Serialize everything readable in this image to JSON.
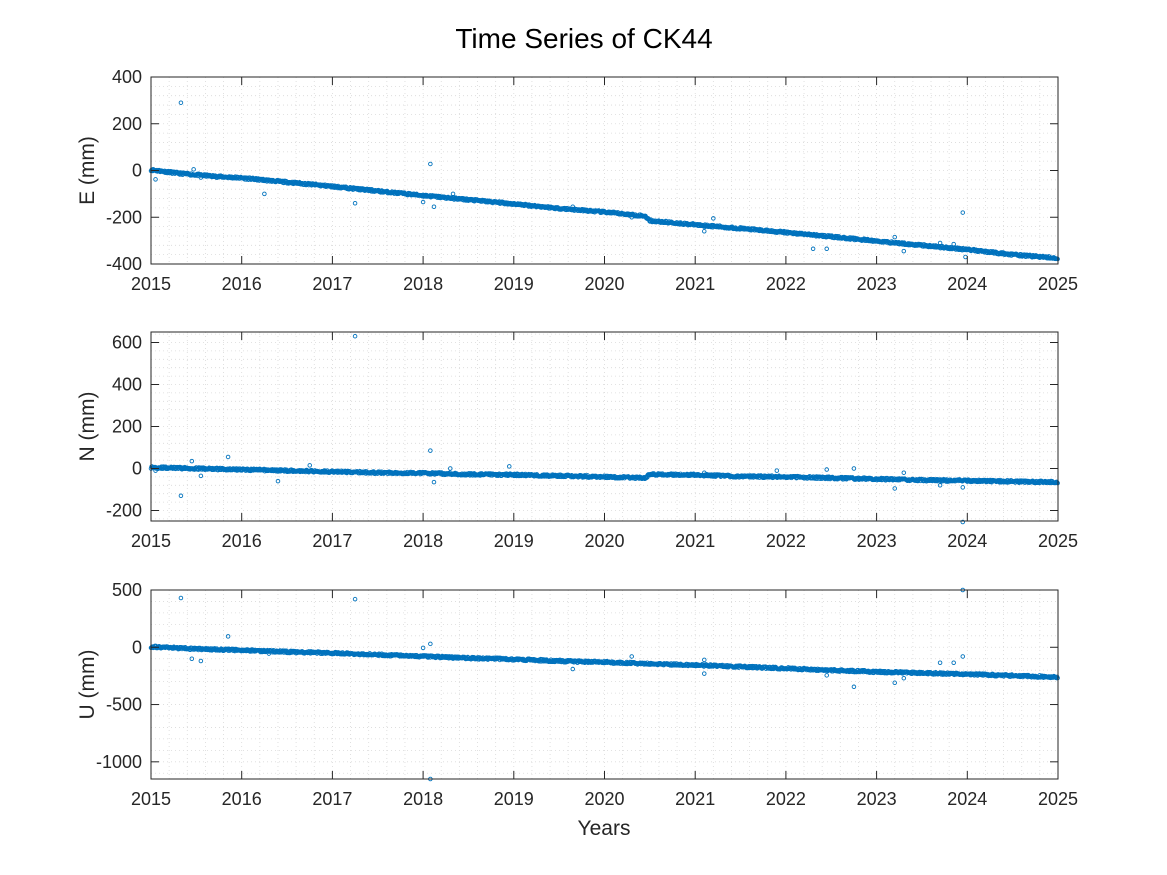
{
  "figure": {
    "title": "Time Series of CK44",
    "xlabel": "Years",
    "marker_color": "#0072bd"
  },
  "chart_data": [
    {
      "type": "scatter",
      "ylabel": "E (mm)",
      "xlim": [
        2015,
        2025
      ],
      "ylim": [
        -400,
        400
      ],
      "xticks": [
        "2015",
        "2016",
        "2017",
        "2018",
        "2019",
        "2020",
        "2021",
        "2022",
        "2023",
        "2024",
        "2025"
      ],
      "yticks": [
        "400",
        "200",
        "0",
        "-200",
        "-400"
      ],
      "grid": "on (minor dotted)",
      "trend": [
        [
          2015.0,
          3
        ],
        [
          2015.3,
          -12
        ],
        [
          2015.7,
          -25
        ],
        [
          2016.0,
          -32
        ],
        [
          2016.5,
          -50
        ],
        [
          2017.0,
          -68
        ],
        [
          2017.5,
          -88
        ],
        [
          2018.0,
          -107
        ],
        [
          2018.5,
          -125
        ],
        [
          2019.0,
          -143
        ],
        [
          2019.5,
          -162
        ],
        [
          2020.0,
          -178
        ],
        [
          2020.45,
          -195
        ],
        [
          2020.5,
          -215
        ],
        [
          2021.0,
          -232
        ],
        [
          2021.5,
          -248
        ],
        [
          2022.0,
          -265
        ],
        [
          2022.5,
          -283
        ],
        [
          2023.0,
          -302
        ],
        [
          2023.5,
          -320
        ],
        [
          2024.0,
          -338
        ],
        [
          2024.5,
          -360
        ],
        [
          2025.0,
          -375
        ]
      ],
      "outliers": [
        [
          2015.05,
          -38
        ],
        [
          2015.33,
          290
        ],
        [
          2015.47,
          5
        ],
        [
          2015.55,
          -30
        ],
        [
          2016.25,
          -100
        ],
        [
          2017.25,
          -140
        ],
        [
          2018.0,
          -135
        ],
        [
          2018.08,
          28
        ],
        [
          2018.12,
          -155
        ],
        [
          2018.33,
          -100
        ],
        [
          2019.65,
          -155
        ],
        [
          2020.3,
          -200
        ],
        [
          2021.1,
          -260
        ],
        [
          2021.2,
          -205
        ],
        [
          2022.3,
          -335
        ],
        [
          2022.45,
          -335
        ],
        [
          2023.2,
          -285
        ],
        [
          2023.3,
          -345
        ],
        [
          2023.7,
          -310
        ],
        [
          2023.85,
          -315
        ],
        [
          2023.95,
          -180
        ],
        [
          2023.98,
          -370
        ],
        [
          2024.0,
          -340
        ],
        [
          2024.95,
          -375
        ]
      ]
    },
    {
      "type": "scatter",
      "ylabel": "N (mm)",
      "xlim": [
        2015,
        2025
      ],
      "ylim": [
        -250,
        650
      ],
      "xticks": [
        "2015",
        "2016",
        "2017",
        "2018",
        "2019",
        "2020",
        "2021",
        "2022",
        "2023",
        "2024",
        "2025"
      ],
      "yticks": [
        "600",
        "400",
        "200",
        "0",
        "-200"
      ],
      "grid": "on (minor dotted)",
      "trend": [
        [
          2015.0,
          5
        ],
        [
          2015.5,
          0
        ],
        [
          2016.0,
          -5
        ],
        [
          2016.5,
          -10
        ],
        [
          2017.0,
          -15
        ],
        [
          2017.5,
          -20
        ],
        [
          2018.0,
          -22
        ],
        [
          2018.5,
          -28
        ],
        [
          2019.0,
          -30
        ],
        [
          2019.5,
          -35
        ],
        [
          2020.0,
          -40
        ],
        [
          2020.45,
          -45
        ],
        [
          2020.5,
          -28
        ],
        [
          2021.0,
          -30
        ],
        [
          2021.5,
          -38
        ],
        [
          2022.0,
          -40
        ],
        [
          2022.5,
          -45
        ],
        [
          2023.0,
          -50
        ],
        [
          2023.5,
          -55
        ],
        [
          2024.0,
          -58
        ],
        [
          2024.5,
          -62
        ],
        [
          2025.0,
          -65
        ]
      ],
      "outliers": [
        [
          2015.05,
          -10
        ],
        [
          2015.33,
          -130
        ],
        [
          2015.45,
          35
        ],
        [
          2015.55,
          -35
        ],
        [
          2015.85,
          55
        ],
        [
          2016.4,
          -60
        ],
        [
          2016.75,
          15
        ],
        [
          2017.25,
          630
        ],
        [
          2018.08,
          85
        ],
        [
          2018.12,
          -65
        ],
        [
          2018.3,
          0
        ],
        [
          2018.95,
          10
        ],
        [
          2021.1,
          -20
        ],
        [
          2021.9,
          -10
        ],
        [
          2022.45,
          -5
        ],
        [
          2022.75,
          0
        ],
        [
          2023.2,
          -95
        ],
        [
          2023.3,
          -20
        ],
        [
          2023.7,
          -80
        ],
        [
          2023.95,
          -90
        ],
        [
          2023.95,
          -255
        ]
      ]
    },
    {
      "type": "scatter",
      "ylabel": "U (mm)",
      "xlim": [
        2015,
        2025
      ],
      "ylim": [
        -1150,
        500
      ],
      "xticks": [
        "2015",
        "2016",
        "2017",
        "2018",
        "2019",
        "2020",
        "2021",
        "2022",
        "2023",
        "2024",
        "2025"
      ],
      "yticks": [
        "500",
        "0",
        "-500",
        "-1000"
      ],
      "grid": "on (minor dotted)",
      "trend": [
        [
          2015.0,
          5
        ],
        [
          2015.5,
          -15
        ],
        [
          2016.0,
          -25
        ],
        [
          2016.5,
          -40
        ],
        [
          2017.0,
          -50
        ],
        [
          2017.5,
          -65
        ],
        [
          2018.0,
          -80
        ],
        [
          2018.5,
          -95
        ],
        [
          2019.0,
          -105
        ],
        [
          2019.5,
          -120
        ],
        [
          2020.0,
          -130
        ],
        [
          2020.5,
          -145
        ],
        [
          2021.0,
          -155
        ],
        [
          2021.5,
          -170
        ],
        [
          2022.0,
          -185
        ],
        [
          2022.5,
          -200
        ],
        [
          2023.0,
          -215
        ],
        [
          2023.5,
          -225
        ],
        [
          2024.0,
          -235
        ],
        [
          2024.5,
          -248
        ],
        [
          2025.0,
          -260
        ]
      ],
      "outliers": [
        [
          2015.33,
          430
        ],
        [
          2015.45,
          -100
        ],
        [
          2015.55,
          -120
        ],
        [
          2015.85,
          95
        ],
        [
          2016.3,
          -55
        ],
        [
          2016.4,
          -40
        ],
        [
          2017.25,
          420
        ],
        [
          2018.0,
          -5
        ],
        [
          2018.08,
          30
        ],
        [
          2018.08,
          -1150
        ],
        [
          2019.65,
          -190
        ],
        [
          2020.3,
          -80
        ],
        [
          2021.1,
          -110
        ],
        [
          2021.1,
          -230
        ],
        [
          2022.45,
          -245
        ],
        [
          2022.75,
          -345
        ],
        [
          2023.2,
          -310
        ],
        [
          2023.3,
          -270
        ],
        [
          2023.7,
          -135
        ],
        [
          2023.85,
          -135
        ],
        [
          2023.95,
          500
        ],
        [
          2023.95,
          -80
        ]
      ]
    }
  ]
}
